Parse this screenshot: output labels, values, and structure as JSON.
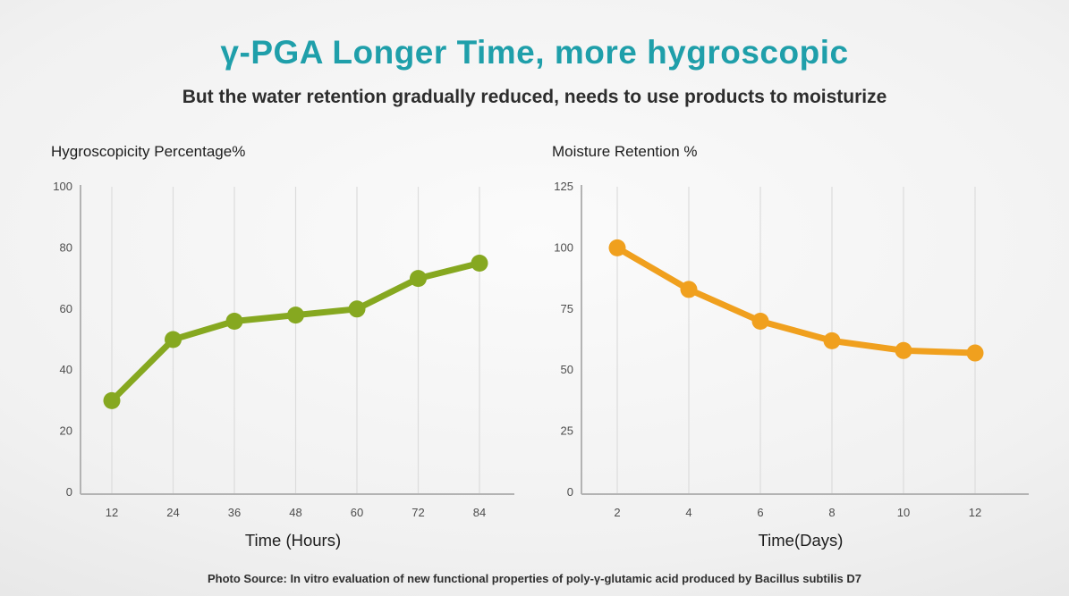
{
  "header": {
    "title": "γ-PGA Longer Time, more hygroscopic",
    "subtitle": "But the water retention gradually reduced, needs to use products to moisturize"
  },
  "footer": {
    "text": "Photo Source: In vitro evaluation of new functional properties of poly-γ-glutamic acid produced by Bacillus subtilis D7"
  },
  "colors": {
    "title_teal": "#1f9faa",
    "subtitle_dark": "#2d2d2d",
    "left_series_green": "#86a820",
    "right_series_orange": "#f0a01e",
    "axis_line": "#b3b3b3",
    "grid_line": "#dcdcdc",
    "tick_text": "#4d4d4d"
  },
  "chart_data": [
    {
      "type": "line",
      "title": "Hygroscopicity Percentage%",
      "x": [
        12,
        24,
        36,
        48,
        60,
        72,
        84
      ],
      "values": [
        30,
        50,
        56,
        58,
        60,
        70,
        75
      ],
      "xlabel": "Time (Hours)",
      "ylabel": "",
      "ylim": [
        0,
        100
      ],
      "yticks": [
        0,
        20,
        40,
        60,
        80,
        100
      ],
      "line_color": "#86a820",
      "marker": "circle",
      "grid": "vertical-only",
      "legend": "none"
    },
    {
      "type": "line",
      "title": "Moisture Retention %",
      "x": [
        2,
        4,
        6,
        8,
        10,
        12
      ],
      "values": [
        100,
        83,
        70,
        62,
        58,
        57
      ],
      "xlabel": "Time(Days)",
      "ylabel": "",
      "ylim": [
        0,
        125
      ],
      "yticks": [
        0,
        25,
        50,
        75,
        100,
        125
      ],
      "line_color": "#f0a01e",
      "marker": "circle",
      "grid": "vertical-only",
      "legend": "none"
    }
  ]
}
